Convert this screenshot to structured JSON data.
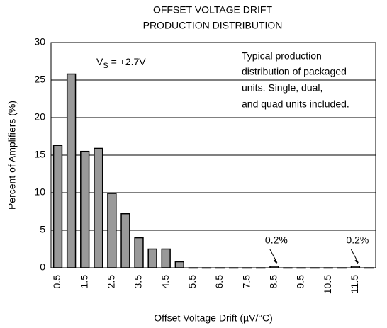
{
  "chart_data": {
    "type": "bar",
    "title": [
      "OFFSET VOLTAGE DRIFT",
      "PRODUCTION DISTRIBUTION"
    ],
    "x_label": "Offset Voltage Drift (µV/°C)",
    "y_label": "Percent of Amplifiers (%)",
    "categories": [
      "0.5",
      null,
      "1.5",
      null,
      "2.5",
      null,
      "3.5",
      null,
      "4.5",
      null,
      "5.5",
      null,
      "6.5",
      null,
      "7.5",
      null,
      "8.5",
      null,
      "9.5",
      null,
      "10.5",
      null,
      "11.5",
      null
    ],
    "values": [
      16.3,
      25.8,
      15.5,
      15.9,
      9.9,
      7.2,
      4.0,
      2.5,
      2.5,
      0.8,
      0,
      0,
      0,
      0,
      0,
      0,
      0.2,
      0,
      0,
      0,
      0,
      0,
      0.2,
      0
    ],
    "value_labels": [
      null,
      null,
      null,
      null,
      null,
      null,
      null,
      null,
      null,
      null,
      null,
      null,
      null,
      null,
      null,
      null,
      "0.2%",
      null,
      null,
      null,
      null,
      null,
      "0.2%",
      null
    ],
    "color": "#999999",
    "ylim": [
      0,
      30
    ],
    "yticks": [
      0,
      5,
      10,
      15,
      20,
      25,
      30
    ],
    "grid": true,
    "condition": {
      "main": "V",
      "sub": "S",
      "rest": " = +2.7V"
    },
    "note": [
      "Typical production",
      "distribution of packaged",
      "units. Single, dual,",
      "and quad units included."
    ]
  }
}
